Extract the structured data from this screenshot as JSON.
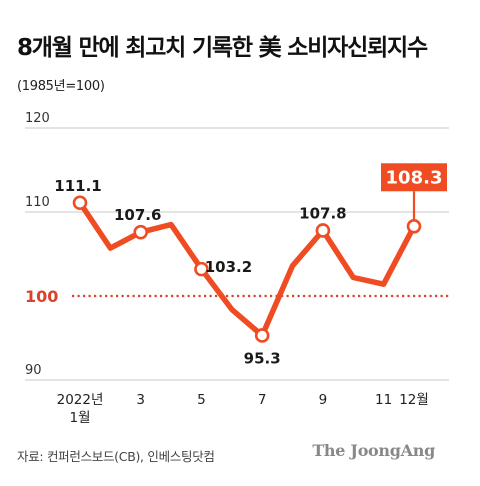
{
  "title": "8개월 만에 최고치 기록한 美 소비자신뢰지수",
  "subtitle": "(1985년=100)",
  "source": "자료: 컨퍼런스보드(CB), 인베스팅닷컴",
  "brand": "The JoongAng",
  "colors": {
    "series": "#f04c23",
    "reference": "#d8432c",
    "grid": "#c9c9c9",
    "label_box": "#f04c23"
  },
  "chart_data": {
    "type": "line",
    "title": "8개월 만에 최고치 기록한 美 소비자신뢰지수",
    "subtitle": "(1985년=100)",
    "ylim": [
      90,
      120
    ],
    "y_ticks": [
      90,
      110,
      120
    ],
    "reference_line": {
      "value": 100,
      "label": "100",
      "style": "dotted"
    },
    "x": [
      "2022-01",
      "2022-02",
      "2022-03",
      "2022-04",
      "2022-05",
      "2022-06",
      "2022-07",
      "2022-08",
      "2022-09",
      "2022-10",
      "2022-11",
      "2022-12"
    ],
    "x_tick_labels": [
      {
        "index": 0,
        "lines": [
          "2022년",
          "1월"
        ]
      },
      {
        "index": 2,
        "lines": [
          "3"
        ]
      },
      {
        "index": 4,
        "lines": [
          "5"
        ]
      },
      {
        "index": 6,
        "lines": [
          "7"
        ]
      },
      {
        "index": 8,
        "lines": [
          "9"
        ]
      },
      {
        "index": 10,
        "lines": [
          "11"
        ]
      },
      {
        "index": 11,
        "lines": [
          "12월"
        ]
      }
    ],
    "series": [
      {
        "values": [
          111.1,
          105.7,
          107.6,
          108.5,
          103.2,
          98.4,
          95.3,
          103.6,
          107.8,
          102.2,
          101.4,
          108.3
        ]
      }
    ],
    "data_labels": [
      {
        "index": 0,
        "text": "111.1"
      },
      {
        "index": 2,
        "text": "107.6"
      },
      {
        "index": 4,
        "text": "103.2"
      },
      {
        "index": 6,
        "text": "95.3"
      },
      {
        "index": 8,
        "text": "107.8"
      },
      {
        "index": 11,
        "text": "108.3",
        "highlight": true
      }
    ],
    "grid": true
  }
}
